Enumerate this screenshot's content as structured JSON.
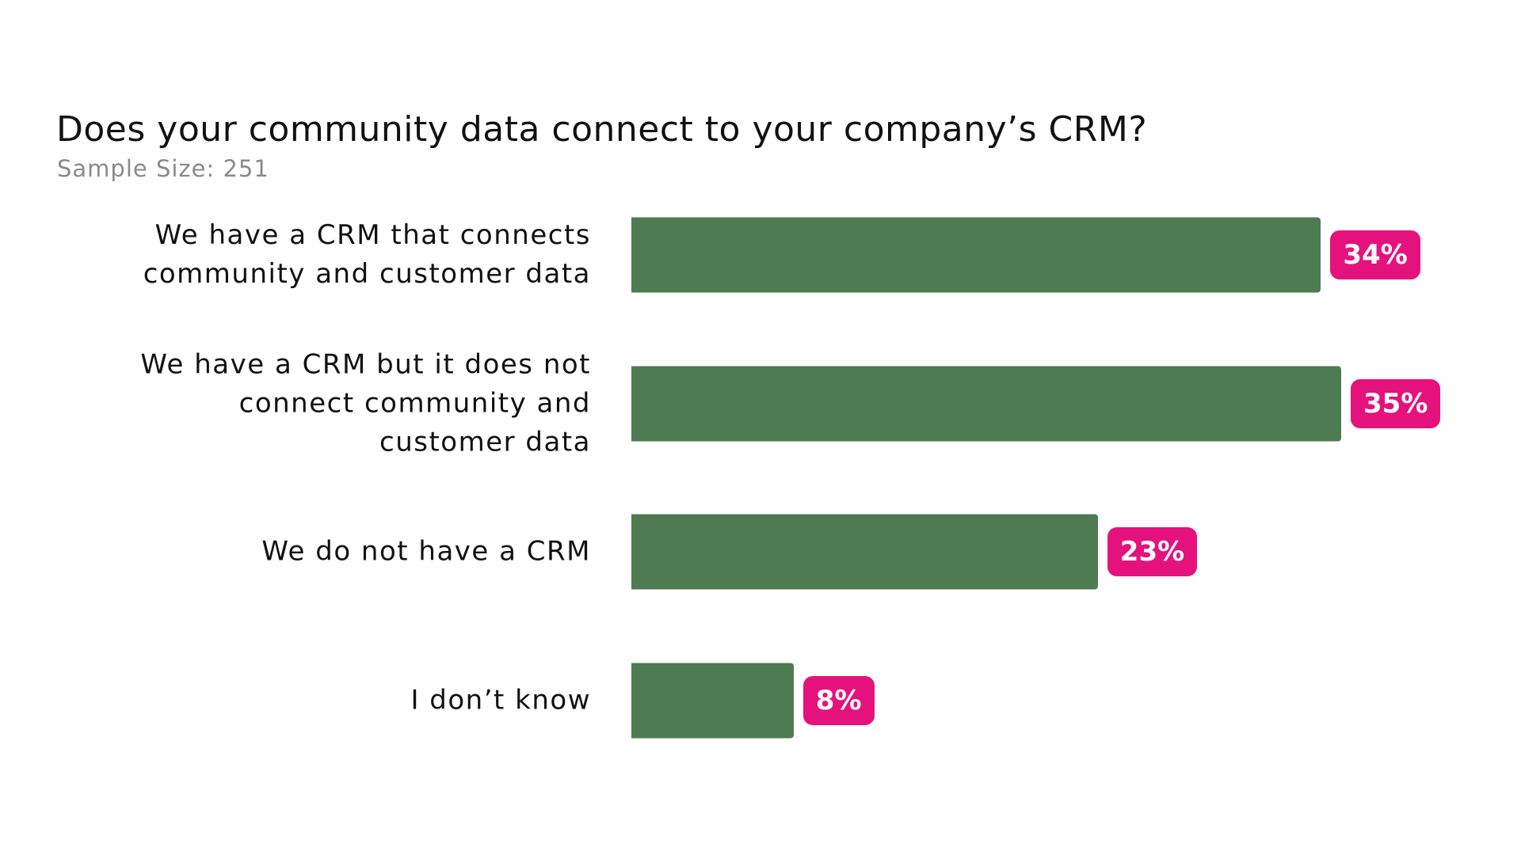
{
  "chart_data": {
    "type": "bar",
    "orientation": "horizontal",
    "title": "Does your community data connect to your company’s CRM?",
    "subtitle": "Sample Size: 251",
    "categories": [
      "We have a CRM that connects community and customer data",
      "We have a CRM but it does not connect community and customer data",
      "We do not have a CRM",
      "I don’t know"
    ],
    "values": [
      34,
      35,
      23,
      8
    ],
    "value_labels": [
      "34%",
      "35%",
      "23%",
      "8%"
    ],
    "color": "#4e7b52"
  }
}
